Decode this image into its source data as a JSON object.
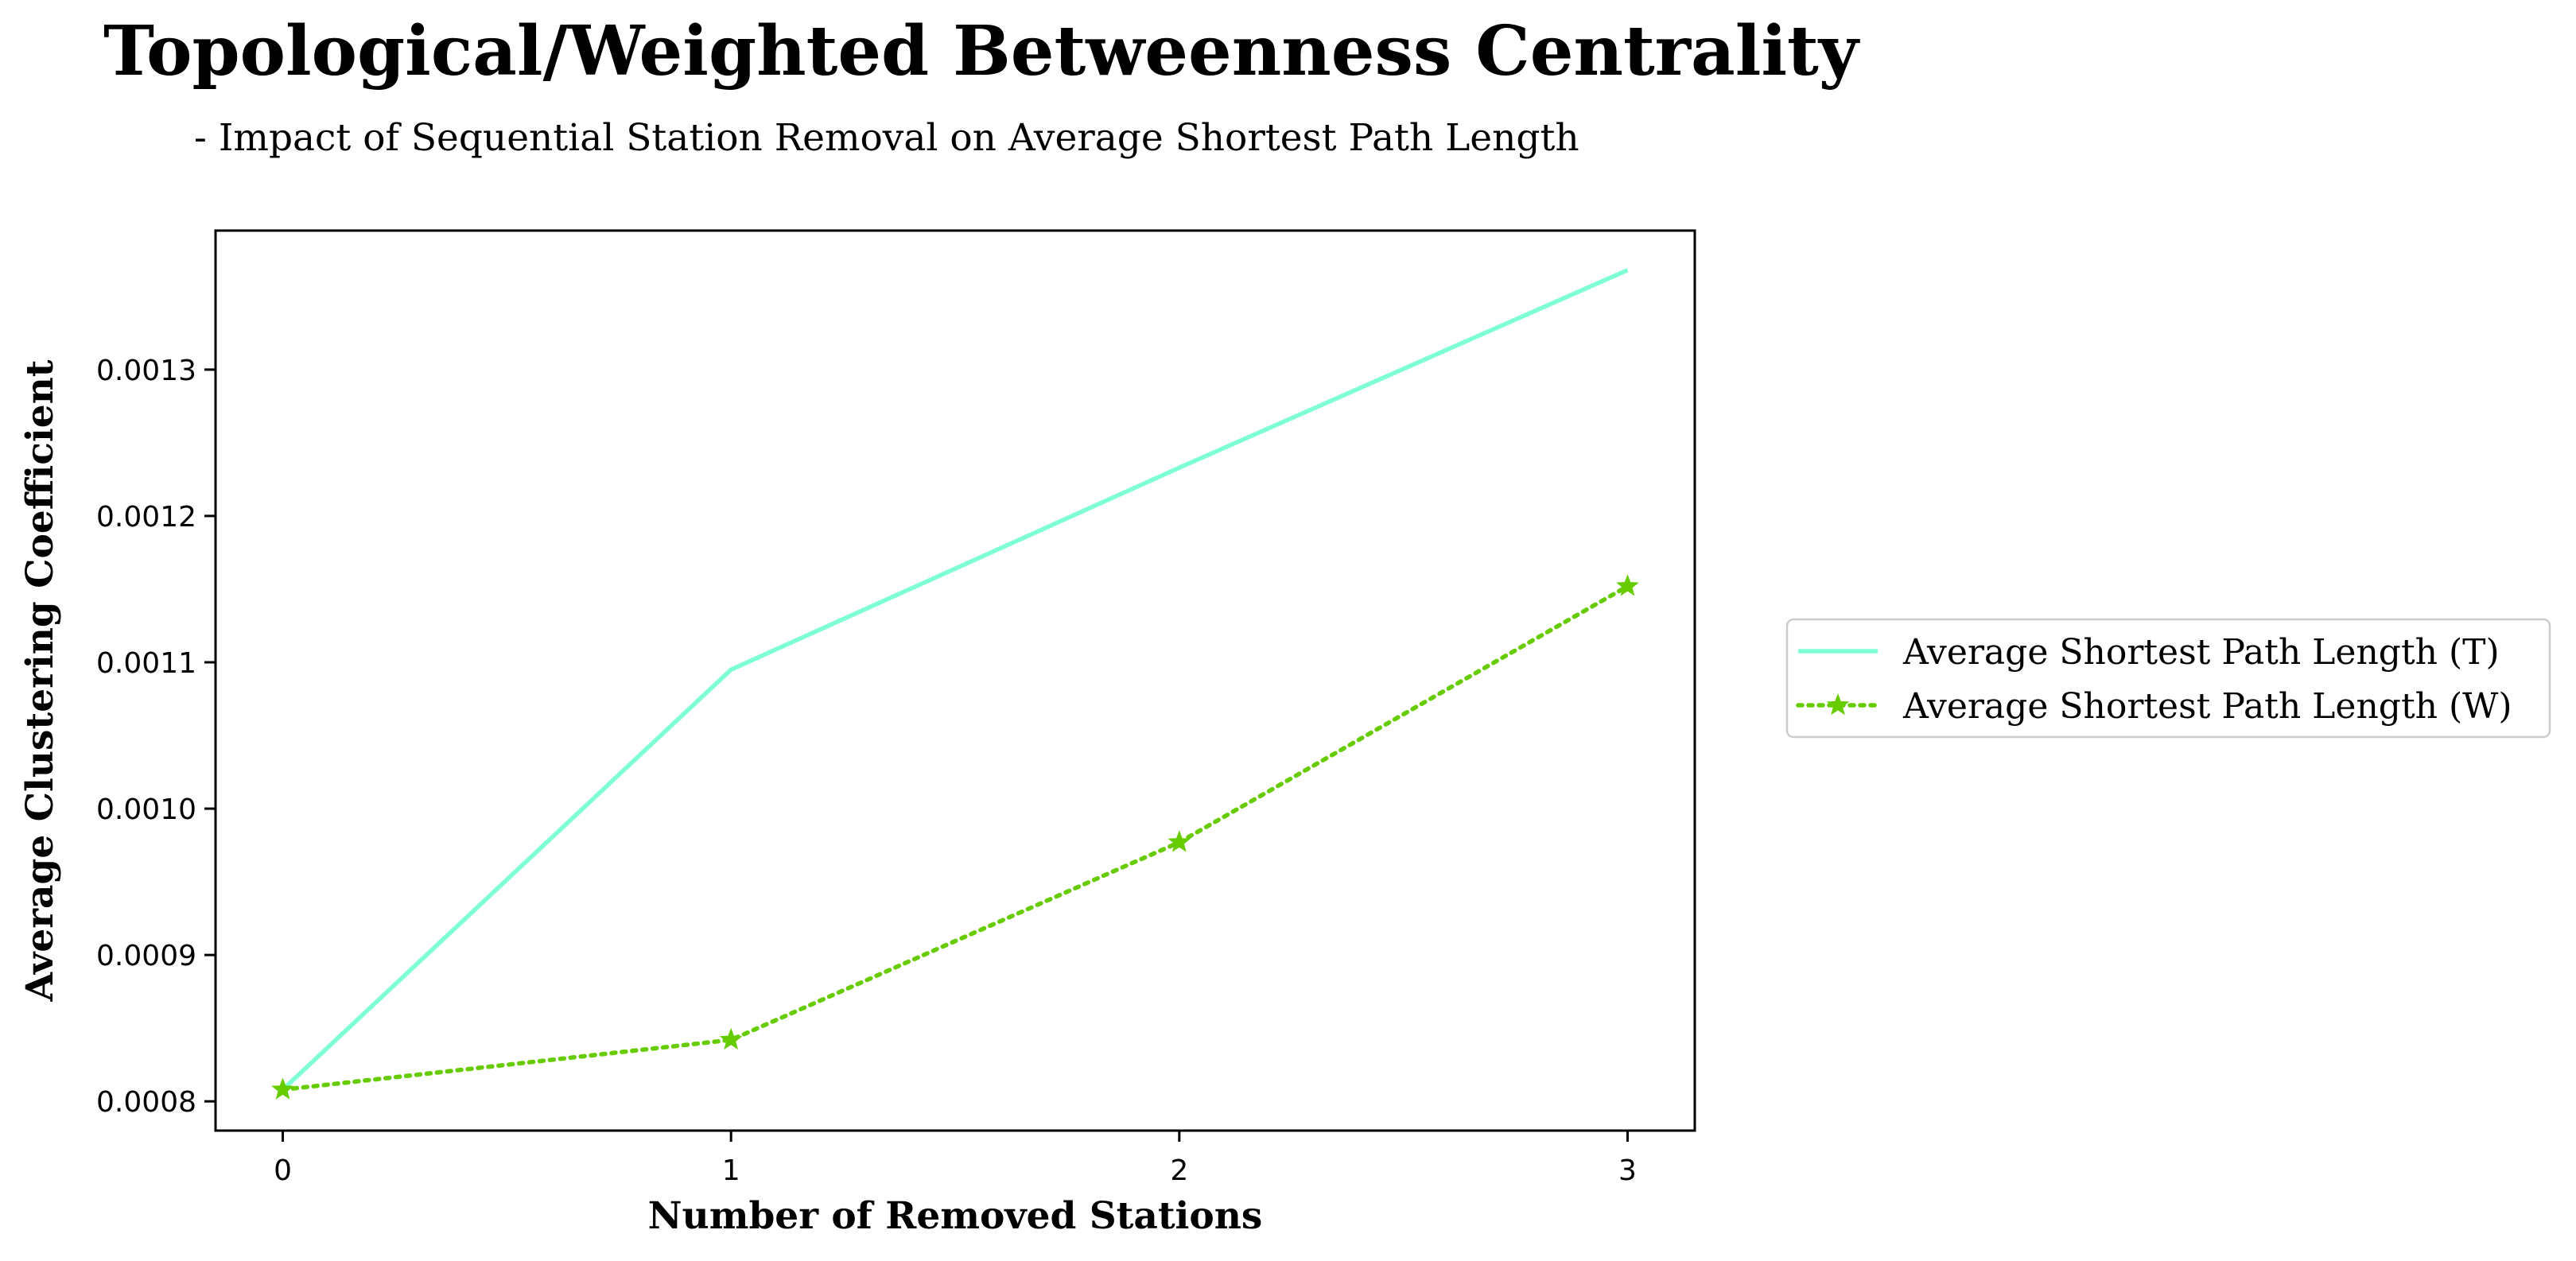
{
  "chart_data": {
    "type": "line",
    "title": "Topological/Weighted Betweenness Centrality",
    "subtitle": "- Impact of Sequential Station Removal on Average Shortest Path Length",
    "xlabel": "Number of Removed Stations",
    "ylabel": "Average Clustering Coefficient",
    "x": [
      0,
      1,
      2,
      3
    ],
    "x_ticks": [
      "0",
      "1",
      "2",
      "3"
    ],
    "y_ticks": [
      "0.0008",
      "0.0009",
      "0.0010",
      "0.0011",
      "0.0012",
      "0.0013"
    ],
    "y_tick_values": [
      0.0008,
      0.0009,
      0.001,
      0.0011,
      0.0012,
      0.0013
    ],
    "xlim": [
      -0.15,
      3.15
    ],
    "ylim": [
      0.00078,
      0.001395
    ],
    "grid": false,
    "legend_position": "right, outside plot",
    "series": [
      {
        "name": "Average Shortest Path Length (T)",
        "values": [
          0.000808,
          0.001095,
          0.001233,
          0.001368
        ],
        "color": "#7fffd4",
        "style": "solid",
        "marker": "none"
      },
      {
        "name": "Average Shortest Path Length (W)",
        "values": [
          0.000808,
          0.000842,
          0.000977,
          0.001152
        ],
        "color": "#66cc00",
        "style": "dotted",
        "marker": "star"
      }
    ]
  }
}
